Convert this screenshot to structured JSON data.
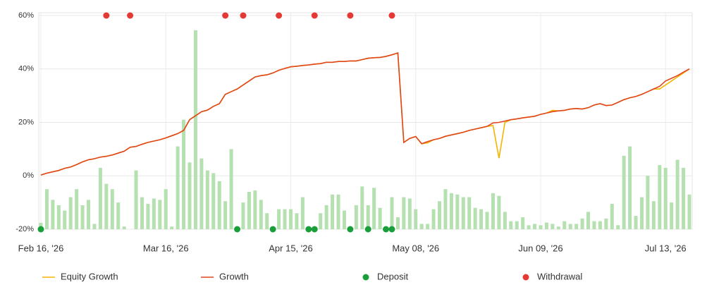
{
  "chart_data": {
    "type": "line",
    "categories": [
      "Feb 16, '26",
      null,
      null,
      null,
      null,
      null,
      null,
      null,
      null,
      null,
      null,
      null,
      null,
      null,
      null,
      null,
      null,
      null,
      null,
      null,
      null,
      "Mar 16, '26",
      null,
      null,
      null,
      null,
      null,
      null,
      null,
      null,
      null,
      null,
      null,
      null,
      null,
      null,
      null,
      null,
      null,
      null,
      null,
      null,
      "Apr 15, '26",
      null,
      null,
      null,
      null,
      null,
      null,
      null,
      null,
      null,
      null,
      null,
      null,
      null,
      null,
      null,
      null,
      null,
      null,
      null,
      null,
      "May 08, '26",
      null,
      null,
      null,
      null,
      null,
      null,
      null,
      null,
      null,
      null,
      null,
      null,
      null,
      null,
      null,
      null,
      null,
      null,
      null,
      null,
      "Jun 09, '26",
      null,
      null,
      null,
      null,
      null,
      null,
      null,
      null,
      null,
      null,
      null,
      null,
      null,
      null,
      null,
      null,
      null,
      null,
      null,
      null,
      "Jul 13, '26",
      null,
      null,
      null,
      null
    ],
    "ylim": [
      -20,
      60
    ],
    "yticks": [
      {
        "value": -20,
        "label": "-20%"
      },
      {
        "value": 0,
        "label": "0%"
      },
      {
        "value": 20,
        "label": "20%"
      },
      {
        "value": 40,
        "label": "40%"
      },
      {
        "value": 60,
        "label": "60%"
      }
    ],
    "y2lim": [
      0,
      80
    ],
    "grid": true,
    "legend": "bottom",
    "series": [
      {
        "type": "bar",
        "axis": "y2",
        "color": "#b5e0b0",
        "values": [
          2.4,
          15,
          11,
          9,
          7,
          12,
          15,
          9,
          11,
          2,
          23,
          17,
          15,
          10,
          1,
          0,
          22,
          12,
          9.5,
          11.5,
          11,
          15,
          1,
          31,
          41,
          25,
          74.5,
          26.5,
          22,
          21,
          18,
          10.5,
          30,
          1,
          10,
          14,
          14.5,
          11,
          6,
          1,
          7.5,
          7.5,
          7.5,
          6,
          12,
          1,
          1,
          6,
          9,
          13,
          13,
          7,
          1,
          9,
          16,
          9,
          15.5,
          8,
          1,
          12,
          4.5,
          12,
          11.5,
          7.5,
          2,
          2,
          7.5,
          10.5,
          15,
          13.5,
          13,
          12,
          12,
          8,
          7.5,
          6.5,
          13.5,
          12.5,
          6.5,
          3,
          3,
          4.5,
          1.5,
          2,
          1.5,
          2.5,
          2,
          1,
          3,
          2,
          2,
          4,
          6.5,
          3,
          3,
          4,
          9.5,
          1.5,
          27.5,
          31,
          5,
          12,
          20,
          10.5,
          24,
          23,
          10,
          26,
          23,
          13
        ]
      },
      {
        "name": "Equity Growth",
        "type": "line",
        "color": "#f5b400",
        "values": [
          0.3,
          1,
          1.5,
          2,
          2.8,
          3.3,
          4.2,
          5.2,
          6,
          6.4,
          7,
          7.3,
          7.8,
          8.5,
          9.2,
          10.7,
          11,
          11.8,
          12.5,
          13,
          13.5,
          14.2,
          15,
          15.8,
          17,
          21,
          22.5,
          24,
          24.6,
          26,
          27,
          30.5,
          31.5,
          32.5,
          34,
          35.5,
          37,
          37.5,
          37.8,
          38.5,
          39.5,
          40.2,
          40.8,
          41,
          41.3,
          41.5,
          41.8,
          42,
          42.5,
          42.5,
          42.8,
          42.8,
          43,
          43,
          43.5,
          44,
          44.2,
          44.3,
          44.7,
          45.3,
          46,
          12.5,
          14,
          14.7,
          12,
          12.3,
          13.5,
          14,
          14.8,
          15.3,
          15.8,
          16.3,
          17,
          17.5,
          18,
          18.5,
          18.8,
          6.6,
          20,
          21,
          21.3,
          21.7,
          22,
          22.3,
          23,
          23.5,
          24.5,
          24.3,
          24.5,
          25,
          25.2,
          25,
          25.5,
          26.5,
          27,
          26.3,
          26.5,
          27.5,
          28.5,
          29.2,
          29.7,
          30.5,
          31.5,
          32.5,
          32.5,
          34,
          35.5,
          37,
          38.5,
          40
        ]
      },
      {
        "name": "Growth",
        "type": "line",
        "color": "#e0461d",
        "values": [
          0.3,
          1,
          1.5,
          2,
          2.8,
          3.3,
          4.2,
          5.2,
          6,
          6.4,
          7,
          7.3,
          7.8,
          8.5,
          9.2,
          10.7,
          11,
          11.8,
          12.5,
          13,
          13.5,
          14.2,
          15,
          15.8,
          17,
          21,
          22.5,
          24,
          24.6,
          26,
          27,
          30.5,
          31.5,
          32.5,
          34,
          35.5,
          37,
          37.5,
          37.8,
          38.5,
          39.5,
          40.2,
          40.8,
          41,
          41.3,
          41.5,
          41.8,
          42,
          42.5,
          42.5,
          42.8,
          42.8,
          43,
          43,
          43.5,
          44,
          44.2,
          44.3,
          44.7,
          45.3,
          46,
          12.5,
          14,
          14.7,
          12,
          12.8,
          13.5,
          14,
          14.8,
          15.3,
          15.8,
          16.3,
          17,
          17.5,
          18,
          18.5,
          19.8,
          20,
          20.5,
          21,
          21.3,
          21.7,
          22,
          22.3,
          23,
          23.5,
          24,
          24.3,
          24.5,
          25,
          25.2,
          25,
          25.5,
          26.5,
          27,
          26.3,
          26.5,
          27.5,
          28.5,
          29.2,
          29.7,
          30.5,
          31.5,
          32.5,
          33.5,
          35.5,
          36.5,
          37.5,
          38.8,
          40
        ]
      },
      {
        "name": "Deposit",
        "type": "scatter",
        "color": "#1a9e3a",
        "x": [
          0,
          33,
          39,
          45,
          46,
          52,
          55,
          58,
          59
        ],
        "values": [
          -20,
          -20,
          -20,
          -20,
          -20,
          -20,
          -20,
          -20,
          -20
        ]
      },
      {
        "name": "Withdrawal",
        "type": "scatter",
        "color": "#e53935",
        "x": [
          11,
          15,
          31,
          34,
          40,
          46,
          52,
          59
        ],
        "values": [
          60,
          60,
          60,
          60,
          60,
          60,
          60,
          60
        ]
      }
    ]
  }
}
